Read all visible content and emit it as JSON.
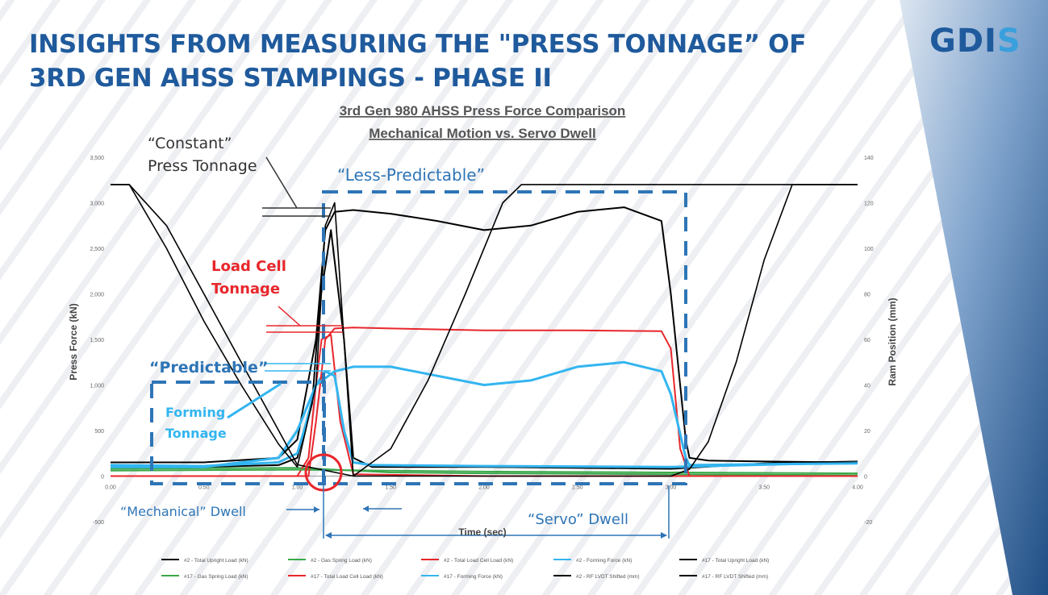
{
  "slide": {
    "title_line1": "INSIGHTS FROM MEASURING THE \"PRESS TONNAGE” OF",
    "title_line2": "3RD GEN AHSS STAMPINGS - PHASE II",
    "logo_main": "GDI",
    "logo_accent": "S",
    "colors": {
      "title": "#1f5a9c",
      "accent_blue": "#2e75b6",
      "red": "#e8262b",
      "cyan": "#33b5f0"
    }
  },
  "annotations": {
    "constant_1": "“Constant”",
    "constant_2": "Press  Tonnage",
    "less_predictable": "“Less-Predictable”",
    "load_cell_1": "Load Cell",
    "load_cell_2": "Tonnage",
    "predictable": "“Predictable”",
    "forming_1": "Forming",
    "forming_2": "Tonnage",
    "mechanical_dwell": "“Mechanical” Dwell",
    "servo_dwell": "“Servo” Dwell"
  },
  "chart_data": {
    "type": "line",
    "title": "3rd Gen 980 AHSS Press Force Comparison",
    "subtitle": "Mechanical Motion vs. Servo Dwell",
    "xlabel": "Time (sec)",
    "ylabel": "Press Force (kN)",
    "y2label": "Ram Position (mm)",
    "xlim": [
      0,
      4
    ],
    "ylim": [
      -500,
      3500
    ],
    "y2lim": [
      -20,
      140
    ],
    "xticks": [
      "0.00",
      "0.50",
      "1.00",
      "1.50",
      "2.00",
      "2.50",
      "3.00",
      "3.50",
      "4.00"
    ],
    "yticks": [
      "-500",
      "0",
      "500",
      "1,000",
      "1,500",
      "2,000",
      "2,500",
      "3,000",
      "3,500"
    ],
    "y2ticks": [
      "-20",
      "0",
      "20",
      "40",
      "60",
      "80",
      "100",
      "120",
      "140"
    ],
    "legend_position": "bottom",
    "series": [
      {
        "name": "#2 - Total Upright Load (kN)",
        "color": "#000000",
        "axis": "left",
        "x": [
          0,
          0.5,
          0.9,
          1.0,
          1.08,
          1.12,
          1.18,
          1.25,
          1.3,
          1.4,
          2.0,
          3.0,
          3.5,
          4.0
        ],
        "y": [
          100,
          100,
          120,
          200,
          800,
          1900,
          2700,
          1500,
          200,
          100,
          100,
          80,
          140,
          160
        ]
      },
      {
        "name": "#2 - Gas Spring Load (kN)",
        "color": "#3aa84a",
        "axis": "left",
        "x": [
          0,
          1.0,
          1.5,
          2.0,
          3.0,
          4.0
        ],
        "y": [
          80,
          90,
          40,
          30,
          20,
          10
        ]
      },
      {
        "name": "#2 - Total Load Cell Load (kN)",
        "color": "#e8262b",
        "axis": "left",
        "x": [
          0,
          1.0,
          1.06,
          1.1,
          1.13,
          1.18,
          1.23,
          1.3,
          2.0,
          4.0
        ],
        "y": [
          0,
          0,
          200,
          1000,
          1500,
          1550,
          600,
          20,
          0,
          0
        ]
      },
      {
        "name": "#2 - Forming Force (kN)",
        "color": "#33b5f0",
        "axis": "left",
        "x": [
          0,
          0.5,
          0.9,
          1.0,
          1.05,
          1.1,
          1.15,
          1.2,
          1.25,
          1.3,
          1.4,
          2.0,
          3.0,
          4.0
        ],
        "y": [
          120,
          110,
          150,
          250,
          600,
          1000,
          1150,
          1100,
          500,
          150,
          120,
          110,
          100,
          150
        ]
      },
      {
        "name": "#17 - Total Upright Load (kN)",
        "color": "#000000",
        "axis": "left",
        "x": [
          0,
          0.5,
          0.9,
          1.0,
          1.1,
          1.15,
          1.2,
          1.3,
          1.5,
          1.75,
          2.0,
          2.25,
          2.5,
          2.75,
          2.95,
          3.0,
          3.08,
          3.1,
          3.2,
          3.5,
          4.0
        ],
        "y": [
          150,
          150,
          200,
          400,
          1500,
          2700,
          2900,
          2920,
          2880,
          2800,
          2700,
          2750,
          2900,
          2950,
          2800,
          2000,
          400,
          200,
          170,
          160,
          150
        ]
      },
      {
        "name": "#17 - Gas Spring Load (kN)",
        "color": "#3aa84a",
        "axis": "left",
        "x": [
          0,
          1.0,
          2.0,
          3.0,
          4.0
        ],
        "y": [
          60,
          70,
          50,
          40,
          30
        ]
      },
      {
        "name": "#17 - Total Load Cell Load (kN)",
        "color": "#e8262b",
        "axis": "left",
        "x": [
          0,
          1.06,
          1.1,
          1.15,
          1.2,
          1.3,
          1.5,
          2.0,
          2.5,
          2.95,
          3.0,
          3.05,
          3.1,
          4.0
        ],
        "y": [
          0,
          0,
          600,
          1500,
          1620,
          1630,
          1620,
          1600,
          1600,
          1590,
          1400,
          300,
          0,
          0
        ]
      },
      {
        "name": "#17 - Forming Force (kN)",
        "color": "#33b5f0",
        "axis": "left",
        "x": [
          0,
          0.5,
          0.9,
          1.0,
          1.1,
          1.2,
          1.3,
          1.5,
          1.75,
          2.0,
          2.25,
          2.5,
          2.75,
          2.95,
          3.0,
          3.08,
          3.1,
          3.5,
          4.0
        ],
        "y": [
          100,
          100,
          200,
          500,
          1000,
          1150,
          1200,
          1200,
          1100,
          1000,
          1050,
          1200,
          1250,
          1150,
          900,
          200,
          120,
          130,
          140
        ]
      },
      {
        "name": "#2 - RF LVDT Shifted (mm)",
        "color": "#000000",
        "axis": "right",
        "x": [
          0,
          0.1,
          0.3,
          0.5,
          0.7,
          0.9,
          1.0,
          1.1,
          1.15,
          1.2,
          1.3,
          1.5,
          1.7,
          1.9,
          2.1,
          2.2,
          4.0
        ],
        "y": [
          128,
          128,
          100,
          68,
          40,
          14,
          4,
          40,
          110,
          120,
          0,
          12,
          42,
          80,
          120,
          128,
          128
        ]
      },
      {
        "name": "#17 - RF LVDT Shifted (mm)",
        "color": "#000000",
        "axis": "right",
        "x": [
          0,
          0.1,
          0.3,
          0.5,
          0.7,
          0.9,
          1.0,
          1.3,
          3.0,
          3.1,
          3.2,
          3.35,
          3.5,
          3.65,
          4.0
        ],
        "y": [
          128,
          128,
          110,
          80,
          50,
          20,
          5,
          0,
          0,
          3,
          15,
          50,
          95,
          128,
          128
        ]
      }
    ]
  }
}
